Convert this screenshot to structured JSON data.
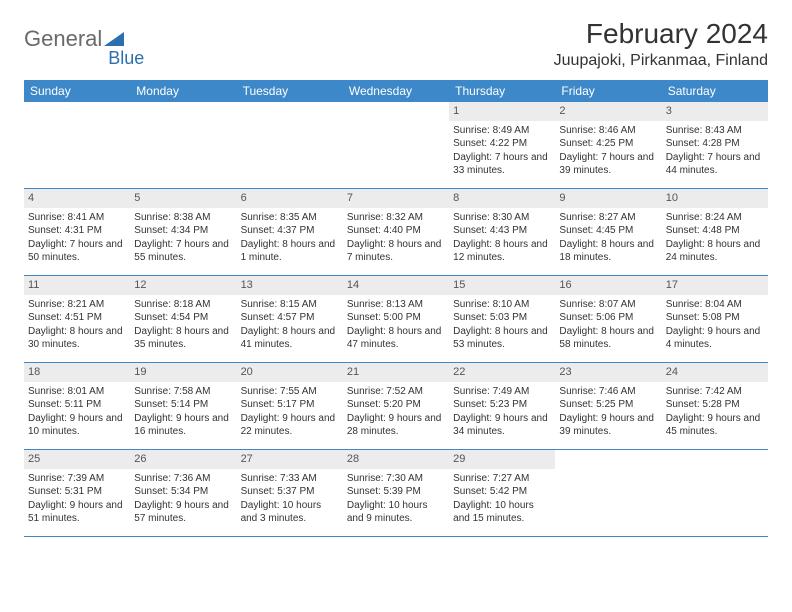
{
  "logo": {
    "text1": "General",
    "text2": "Blue",
    "color_gray": "#6a6a6a",
    "color_blue": "#2b6fb0",
    "tri_color": "#2b6fb0"
  },
  "title": "February 2024",
  "location": "Juupajoki, Pirkanmaa, Finland",
  "header_bg": "#3d88c8",
  "daynum_bg": "#ececec",
  "border_color": "#3d88c8",
  "font_size_title": 28,
  "font_size_location": 16,
  "font_size_dow": 12,
  "font_size_cell": 10,
  "days_of_week": [
    "Sunday",
    "Monday",
    "Tuesday",
    "Wednesday",
    "Thursday",
    "Friday",
    "Saturday"
  ],
  "weeks": [
    [
      {
        "n": "",
        "lines": ""
      },
      {
        "n": "",
        "lines": ""
      },
      {
        "n": "",
        "lines": ""
      },
      {
        "n": "",
        "lines": ""
      },
      {
        "n": "1",
        "lines": "Sunrise: 8:49 AM\nSunset: 4:22 PM\nDaylight: 7 hours and 33 minutes."
      },
      {
        "n": "2",
        "lines": "Sunrise: 8:46 AM\nSunset: 4:25 PM\nDaylight: 7 hours and 39 minutes."
      },
      {
        "n": "3",
        "lines": "Sunrise: 8:43 AM\nSunset: 4:28 PM\nDaylight: 7 hours and 44 minutes."
      }
    ],
    [
      {
        "n": "4",
        "lines": "Sunrise: 8:41 AM\nSunset: 4:31 PM\nDaylight: 7 hours and 50 minutes."
      },
      {
        "n": "5",
        "lines": "Sunrise: 8:38 AM\nSunset: 4:34 PM\nDaylight: 7 hours and 55 minutes."
      },
      {
        "n": "6",
        "lines": "Sunrise: 8:35 AM\nSunset: 4:37 PM\nDaylight: 8 hours and 1 minute."
      },
      {
        "n": "7",
        "lines": "Sunrise: 8:32 AM\nSunset: 4:40 PM\nDaylight: 8 hours and 7 minutes."
      },
      {
        "n": "8",
        "lines": "Sunrise: 8:30 AM\nSunset: 4:43 PM\nDaylight: 8 hours and 12 minutes."
      },
      {
        "n": "9",
        "lines": "Sunrise: 8:27 AM\nSunset: 4:45 PM\nDaylight: 8 hours and 18 minutes."
      },
      {
        "n": "10",
        "lines": "Sunrise: 8:24 AM\nSunset: 4:48 PM\nDaylight: 8 hours and 24 minutes."
      }
    ],
    [
      {
        "n": "11",
        "lines": "Sunrise: 8:21 AM\nSunset: 4:51 PM\nDaylight: 8 hours and 30 minutes."
      },
      {
        "n": "12",
        "lines": "Sunrise: 8:18 AM\nSunset: 4:54 PM\nDaylight: 8 hours and 35 minutes."
      },
      {
        "n": "13",
        "lines": "Sunrise: 8:15 AM\nSunset: 4:57 PM\nDaylight: 8 hours and 41 minutes."
      },
      {
        "n": "14",
        "lines": "Sunrise: 8:13 AM\nSunset: 5:00 PM\nDaylight: 8 hours and 47 minutes."
      },
      {
        "n": "15",
        "lines": "Sunrise: 8:10 AM\nSunset: 5:03 PM\nDaylight: 8 hours and 53 minutes."
      },
      {
        "n": "16",
        "lines": "Sunrise: 8:07 AM\nSunset: 5:06 PM\nDaylight: 8 hours and 58 minutes."
      },
      {
        "n": "17",
        "lines": "Sunrise: 8:04 AM\nSunset: 5:08 PM\nDaylight: 9 hours and 4 minutes."
      }
    ],
    [
      {
        "n": "18",
        "lines": "Sunrise: 8:01 AM\nSunset: 5:11 PM\nDaylight: 9 hours and 10 minutes."
      },
      {
        "n": "19",
        "lines": "Sunrise: 7:58 AM\nSunset: 5:14 PM\nDaylight: 9 hours and 16 minutes."
      },
      {
        "n": "20",
        "lines": "Sunrise: 7:55 AM\nSunset: 5:17 PM\nDaylight: 9 hours and 22 minutes."
      },
      {
        "n": "21",
        "lines": "Sunrise: 7:52 AM\nSunset: 5:20 PM\nDaylight: 9 hours and 28 minutes."
      },
      {
        "n": "22",
        "lines": "Sunrise: 7:49 AM\nSunset: 5:23 PM\nDaylight: 9 hours and 34 minutes."
      },
      {
        "n": "23",
        "lines": "Sunrise: 7:46 AM\nSunset: 5:25 PM\nDaylight: 9 hours and 39 minutes."
      },
      {
        "n": "24",
        "lines": "Sunrise: 7:42 AM\nSunset: 5:28 PM\nDaylight: 9 hours and 45 minutes."
      }
    ],
    [
      {
        "n": "25",
        "lines": "Sunrise: 7:39 AM\nSunset: 5:31 PM\nDaylight: 9 hours and 51 minutes."
      },
      {
        "n": "26",
        "lines": "Sunrise: 7:36 AM\nSunset: 5:34 PM\nDaylight: 9 hours and 57 minutes."
      },
      {
        "n": "27",
        "lines": "Sunrise: 7:33 AM\nSunset: 5:37 PM\nDaylight: 10 hours and 3 minutes."
      },
      {
        "n": "28",
        "lines": "Sunrise: 7:30 AM\nSunset: 5:39 PM\nDaylight: 10 hours and 9 minutes."
      },
      {
        "n": "29",
        "lines": "Sunrise: 7:27 AM\nSunset: 5:42 PM\nDaylight: 10 hours and 15 minutes."
      },
      {
        "n": "",
        "lines": ""
      },
      {
        "n": "",
        "lines": ""
      }
    ]
  ]
}
